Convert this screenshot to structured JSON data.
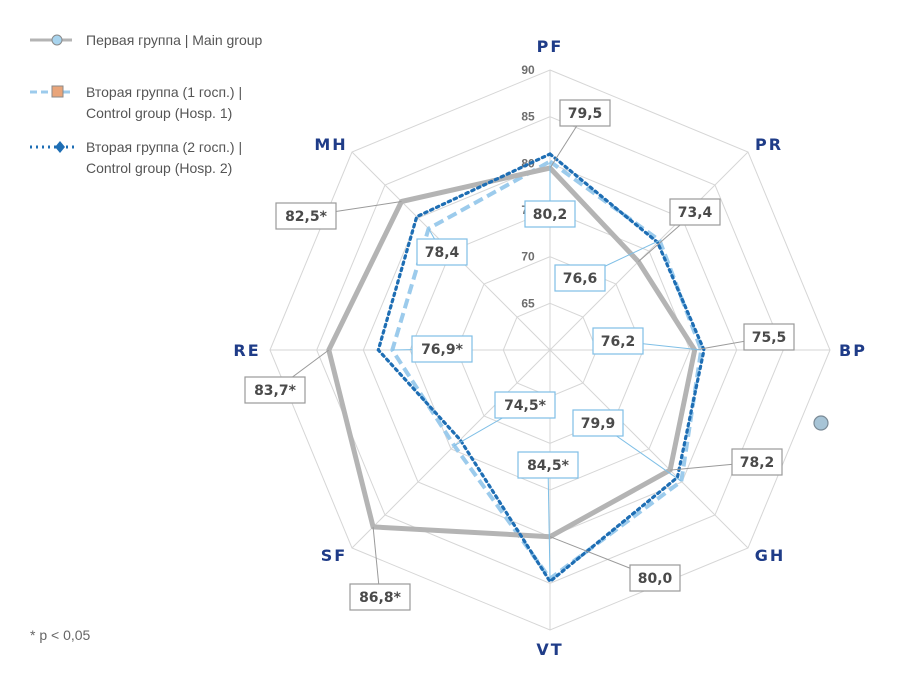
{
  "chart_data": {
    "type": "radar",
    "axes": [
      "PF",
      "PR",
      "BP",
      "GH",
      "VT",
      "SF",
      "RE",
      "MH"
    ],
    "r_ticks": [
      65,
      70,
      75,
      80,
      85,
      90
    ],
    "rlim": [
      60,
      90
    ],
    "grid": true,
    "legend_position": "top-left",
    "series": [
      {
        "name": "Первая группа | Main group",
        "values": [
          79.5,
          73.4,
          75.5,
          78.2,
          80.0,
          86.8,
          83.7,
          82.5
        ],
        "labels": [
          "79,5",
          "73,4",
          "75,5",
          "78,2",
          "80,0",
          "86,8*",
          "83,7*",
          "82,5*"
        ],
        "color": "#b4b4b4"
      },
      {
        "name": "Вторая группа (1 госп.) | Control group (Hosp. 1)",
        "values": [
          80.2,
          76.6,
          76.2,
          79.9,
          84.5,
          74.5,
          76.9,
          78.4
        ],
        "labels": [
          "80,2",
          "76,6",
          "76,2",
          "79,9",
          "84,5*",
          "74,5*",
          "76,9*",
          "78,4"
        ],
        "color": "#9ccbec"
      },
      {
        "name": "Вторая группа (2 госп.) | Control group (Hosp. 2)",
        "values": [
          81.0,
          76.3,
          76.5,
          79.3,
          84.8,
          73.6,
          78.4,
          80.2
        ],
        "color": "#1e6eb4"
      }
    ],
    "footnote": "* p < 0,05"
  },
  "legend": {
    "items": [
      {
        "line1": "Первая группа | Main group",
        "line2": ""
      },
      {
        "line1": "Вторая группа (1 госп.) |",
        "line2": "Control group (Hosp. 1)"
      },
      {
        "line1": "Вторая группа (2 госп.) |",
        "line2": "Control group (Hosp. 2)"
      }
    ]
  },
  "colors": {
    "axis_label": "#1f3c88",
    "grid": "#d6d6d6",
    "box_gray": "#9a9a9a",
    "box_blue": "#7fbfe6"
  }
}
